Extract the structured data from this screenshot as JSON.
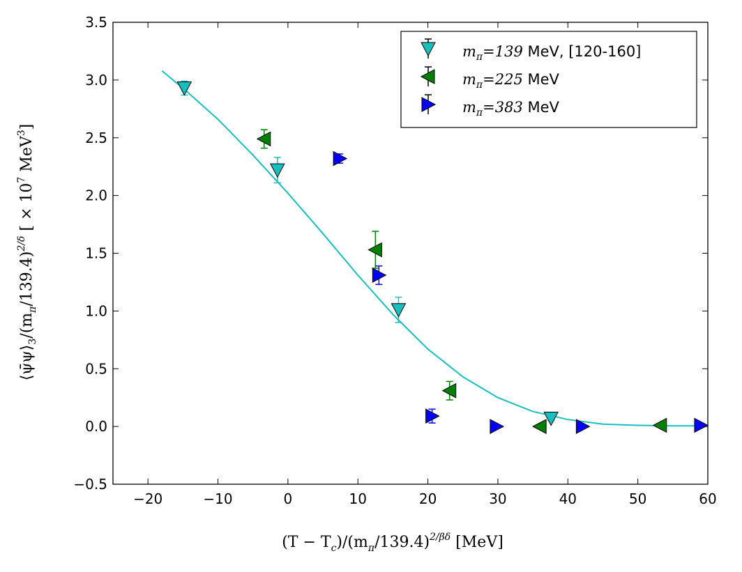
{
  "chart_data": {
    "type": "scatter",
    "title": "",
    "xlabel": "(T − T_c)/(m_π/139.4)^{2/βδ} [MeV]",
    "ylabel": "⟨ψ̄ψ⟩_3/(m_π/139.4)^{2/δ} [ × 10^7 MeV^3]",
    "xlabel_parts": {
      "main": "(T − T",
      "sub": "c",
      "mid": ")/(m",
      "sub2": "π",
      "tail": "/139.4)",
      "sup": "2/βδ",
      "unit": " [MeV]"
    },
    "ylabel_parts": {
      "main": "⟨ψ̄ψ⟩",
      "sub": "3",
      "mid": "/(m",
      "sub2": "π",
      "tail": "/139.4)",
      "sup": "2/δ",
      "unit": " [ × 10",
      "unit_sup": "7",
      "unit2": " MeV",
      "unit_sup2": "3",
      "unit3": "]"
    },
    "xlim": [
      -25,
      60
    ],
    "ylim": [
      -0.5,
      3.5
    ],
    "xticks": [
      -20,
      -10,
      0,
      10,
      20,
      30,
      40,
      50,
      60
    ],
    "xtick_labels": [
      "−20",
      "−10",
      "0",
      "10",
      "20",
      "30",
      "40",
      "50",
      "60"
    ],
    "yticks": [
      -0.5,
      0.0,
      0.5,
      1.0,
      1.5,
      2.0,
      2.5,
      3.0,
      3.5
    ],
    "ytick_labels": [
      "−0.5",
      "0.0",
      "0.5",
      "1.0",
      "1.5",
      "2.0",
      "2.5",
      "3.0",
      "3.5"
    ],
    "legend_position": "top-right",
    "series": [
      {
        "name": "m_π=139 MeV, [120-160]",
        "legend_math": "m",
        "legend_sub": "π",
        "legend_eq": "=139",
        "legend_rest": " MeV, [120-160]",
        "color": "#17bfbf",
        "marker": "triangle-down",
        "points": [
          {
            "x": -14.8,
            "y": 2.93,
            "err": 0.06
          },
          {
            "x": -1.5,
            "y": 2.22,
            "err": 0.11
          },
          {
            "x": 15.8,
            "y": 1.01,
            "err": 0.11
          },
          {
            "x": 37.6,
            "y": 0.07,
            "err": 0.02
          }
        ]
      },
      {
        "name": "m_π=225 MeV",
        "legend_math": "m",
        "legend_sub": "π",
        "legend_eq": "=225",
        "legend_rest": " MeV",
        "color": "#007f00",
        "marker": "triangle-left",
        "points": [
          {
            "x": -3.4,
            "y": 2.49,
            "err": 0.08
          },
          {
            "x": 12.5,
            "y": 1.53,
            "err": 0.16
          },
          {
            "x": 23.1,
            "y": 0.31,
            "err": 0.08
          },
          {
            "x": 36.0,
            "y": 0.0,
            "err": 0.01
          },
          {
            "x": 53.2,
            "y": 0.01,
            "err": 0.01
          }
        ]
      },
      {
        "name": "m_π=383 MeV",
        "legend_math": "m",
        "legend_sub": "π",
        "legend_eq": "=383",
        "legend_rest": " MeV",
        "color": "#0000ff",
        "marker": "triangle-right",
        "points": [
          {
            "x": 7.4,
            "y": 2.32,
            "err": 0.04
          },
          {
            "x": 13.0,
            "y": 1.31,
            "err": 0.08
          },
          {
            "x": 20.6,
            "y": 0.09,
            "err": 0.06
          },
          {
            "x": 29.8,
            "y": 0.0,
            "err": 0.01
          },
          {
            "x": 42.1,
            "y": 0.0,
            "err": 0.01
          },
          {
            "x": 59.0,
            "y": 0.01,
            "err": 0.01
          }
        ]
      }
    ],
    "fit_curve": {
      "color": "#17bfbf",
      "x": [
        -18,
        -15,
        -10,
        -5,
        0,
        5,
        10,
        15,
        20,
        25,
        30,
        35,
        40,
        45,
        50,
        55,
        59
      ],
      "y": [
        3.08,
        2.93,
        2.66,
        2.35,
        2.02,
        1.67,
        1.31,
        0.97,
        0.67,
        0.43,
        0.25,
        0.13,
        0.06,
        0.02,
        0.01,
        0.005,
        0.005
      ]
    }
  }
}
